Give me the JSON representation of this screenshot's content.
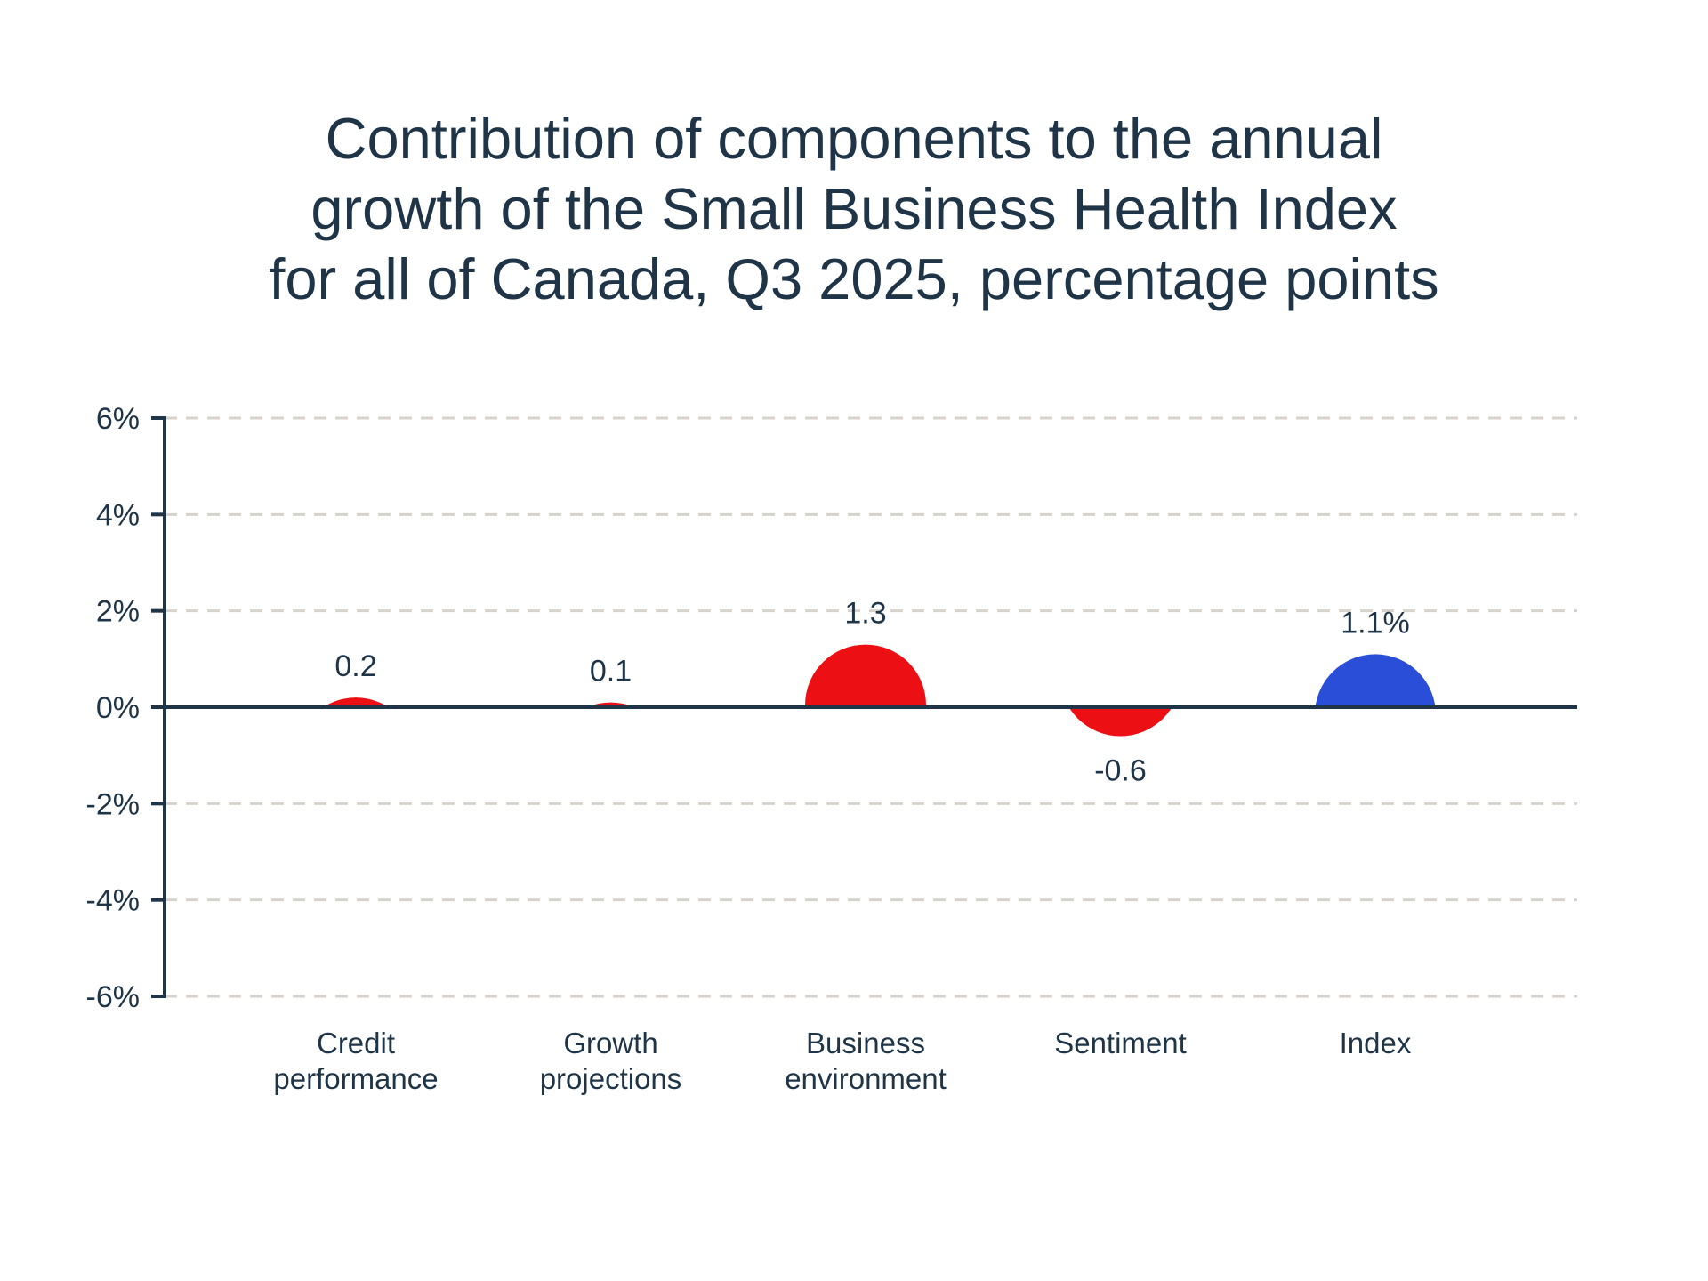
{
  "title": {
    "lines": [
      "Contribution of components to the annual",
      "growth of the Small Business Health Index",
      "for all of Canada, Q3 2025, percentage points"
    ],
    "color": "#1F3447"
  },
  "chart_data": {
    "type": "bar",
    "subtype": "contribution-bubbles",
    "title": "Contribution of components to the annual growth of the Small Business Health Index for all of Canada, Q3 2025, percentage points",
    "categories": [
      "Credit performance",
      "Growth projections",
      "Business environment",
      "Sentiment",
      "Index"
    ],
    "categories_lines": [
      [
        "Credit",
        "performance"
      ],
      [
        "Growth",
        "projections"
      ],
      [
        "Business",
        "environment"
      ],
      [
        "Sentiment"
      ],
      [
        "Index"
      ]
    ],
    "values": [
      0.2,
      0.1,
      1.3,
      -0.6,
      1.1
    ],
    "labels": [
      "0.2",
      "0.1",
      "1.3",
      "-0.6",
      "1.1%"
    ],
    "point_colors": [
      "#EC1014",
      "#EC1014",
      "#EC1014",
      "#EC1014",
      "#2B4ED8"
    ],
    "xlabel": "",
    "ylabel": "",
    "ylim": [
      -6,
      6
    ],
    "ytick_step": 2,
    "ytick_labels": [
      "6%",
      "4%",
      "2%",
      "0%",
      "-2%",
      "-4%",
      "-6%"
    ],
    "grid": "dashed-horizontal",
    "legend": "none",
    "axis_color": "#1F3447",
    "grid_color": "#D7D2CB",
    "component_color": "#EC1014",
    "index_color": "#2B4ED8"
  }
}
